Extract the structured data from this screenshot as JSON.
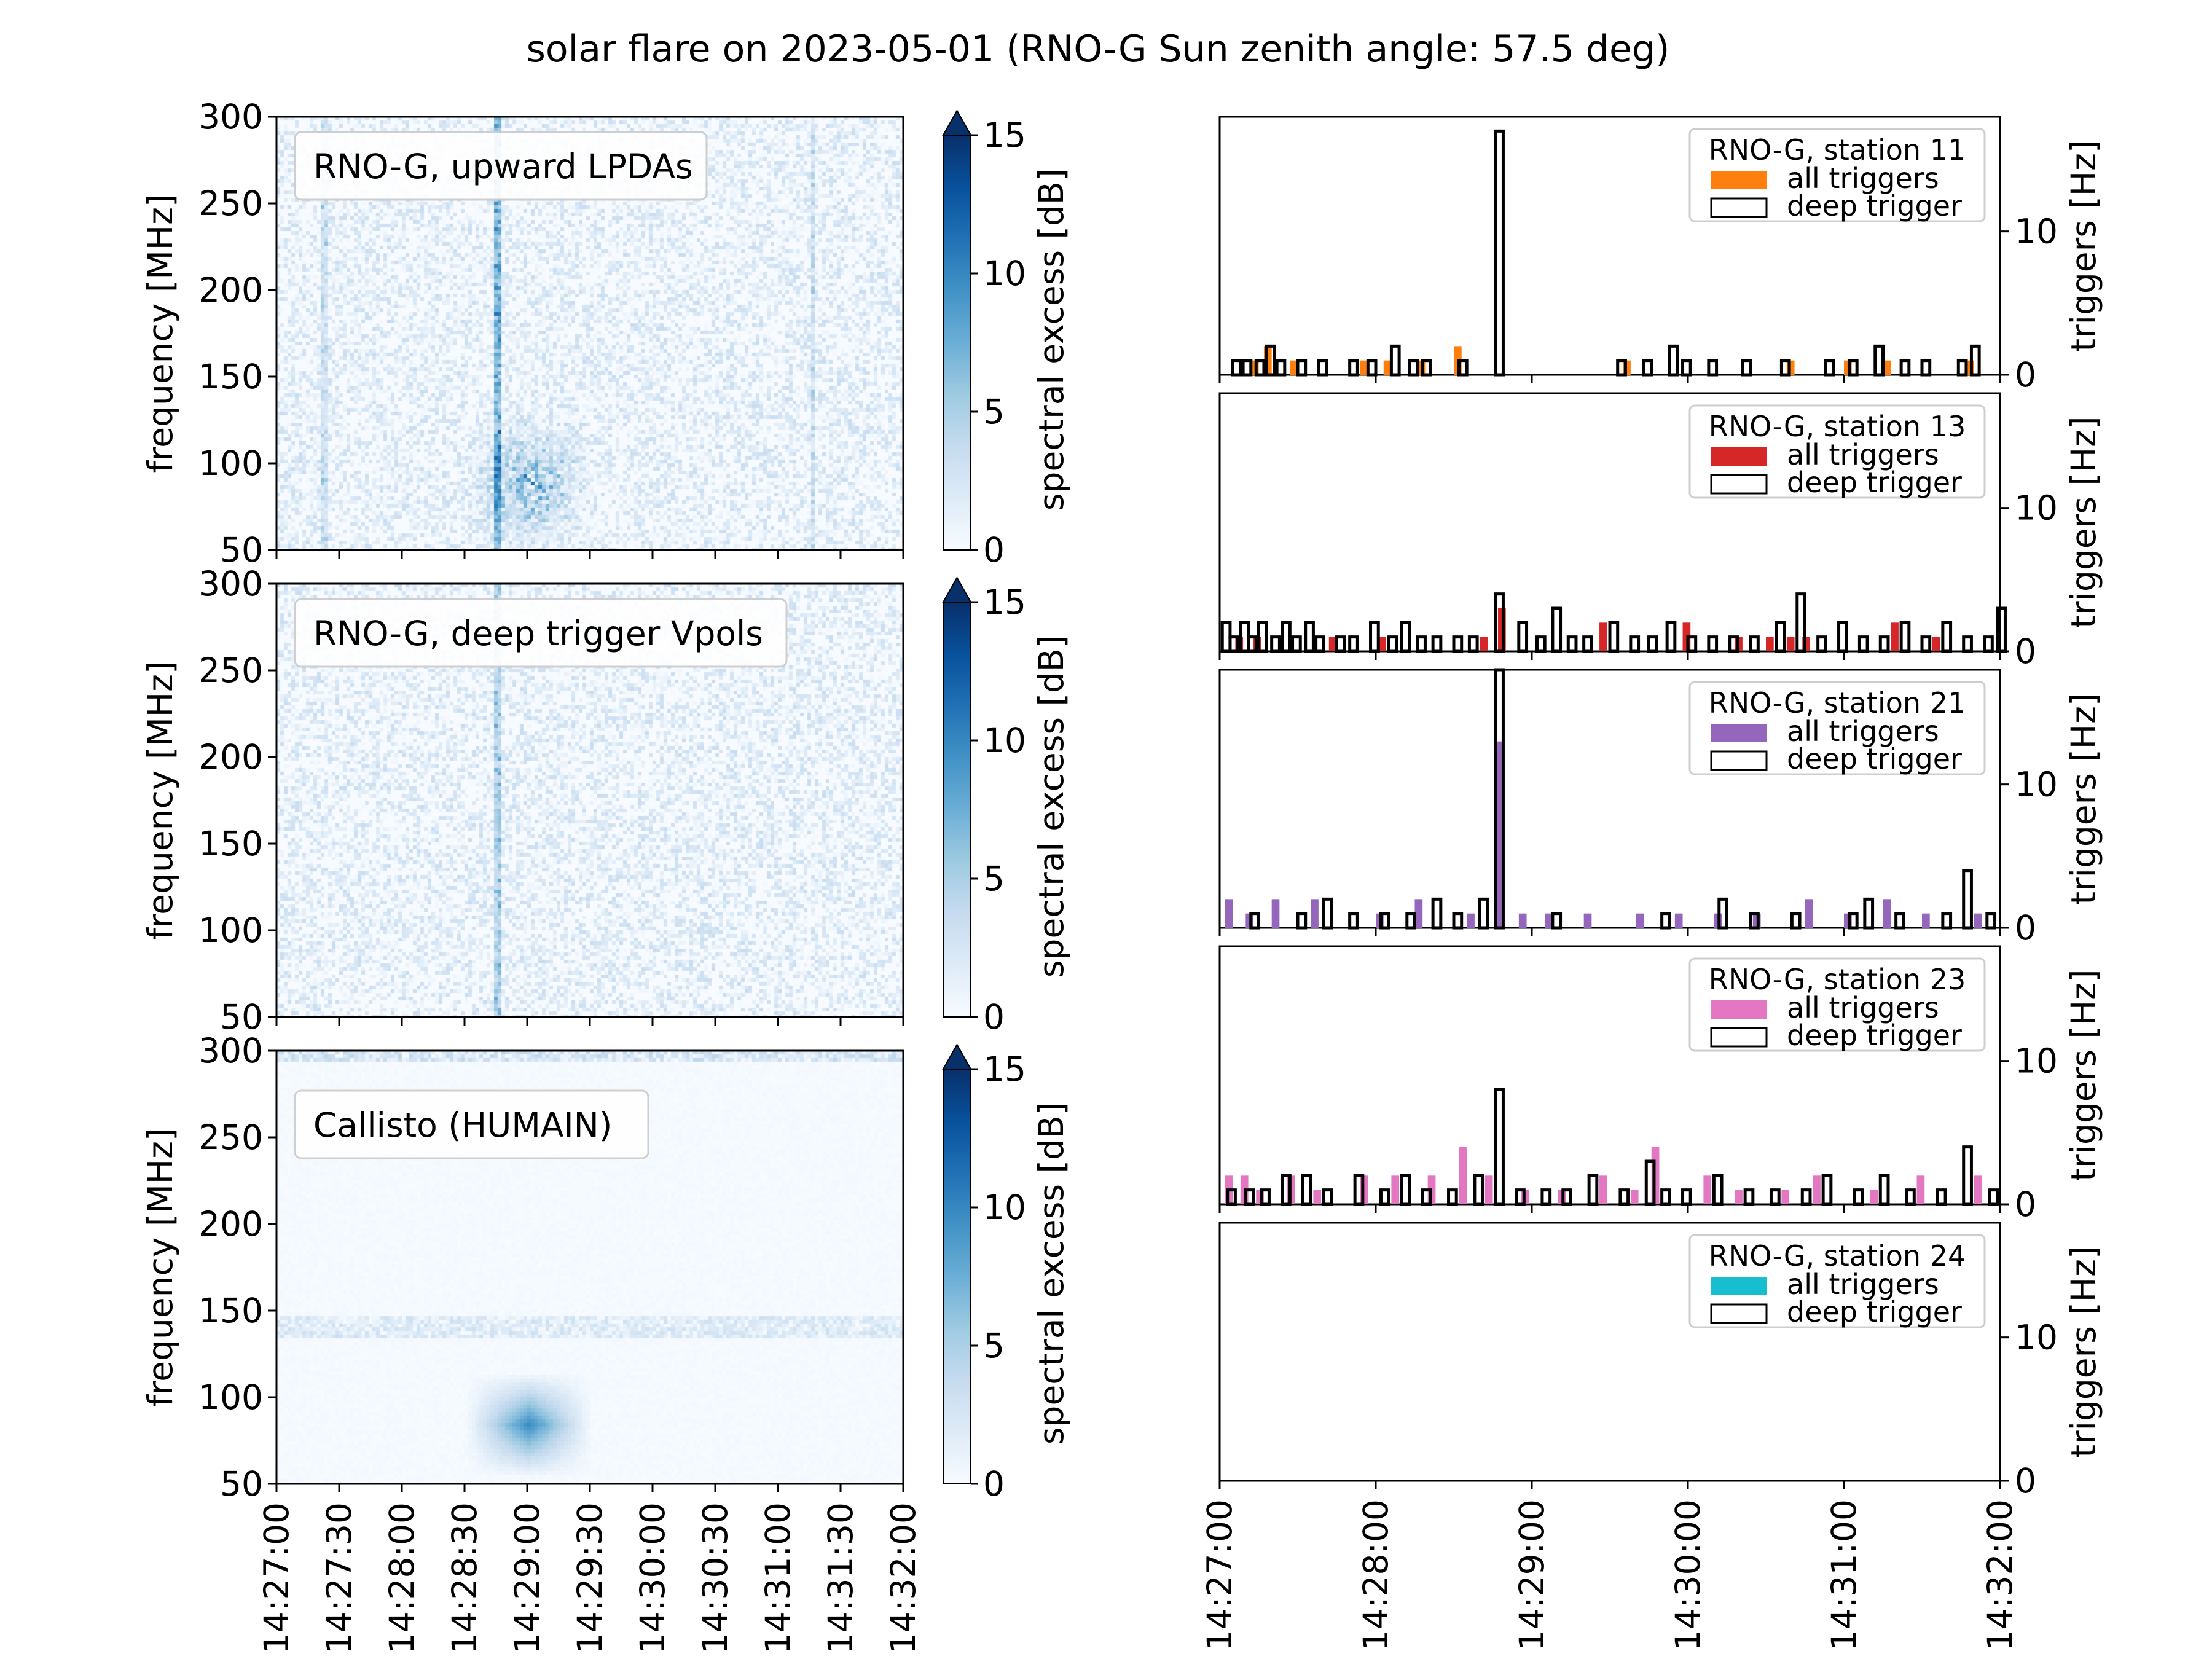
{
  "figure": {
    "title": "solar flare on 2023-05-01 (RNO-G Sun zenith angle: 57.5 deg)"
  },
  "colors": {
    "spectrogram_cmap": "Blues",
    "station_11": "#ff7f0e",
    "station_13": "#d62728",
    "station_21": "#9467bd",
    "station_23": "#e377c2",
    "station_24": "#17becf",
    "deep_trigger": "#000000"
  },
  "chart_data": [
    {
      "type": "heatmap",
      "panel_label": "RNO-G, upward LPDAs",
      "ylabel": "frequency [MHz]",
      "yticks": [
        "50",
        "100",
        "150",
        "200",
        "250",
        "300"
      ],
      "ylim": [
        50,
        300
      ],
      "xlim": [
        "14:27:00",
        "14:32:00"
      ],
      "colorbar": {
        "label": "spectral excess [dB]",
        "ticks": [
          "0",
          "5",
          "10",
          "15"
        ],
        "range": [
          0,
          15
        ],
        "extend": "max"
      },
      "features": [
        {
          "kind": "burst",
          "t_start": "14:28:30",
          "t_end": "14:29:30",
          "f_low": 50,
          "f_high": 130,
          "level_db": 6
        },
        {
          "kind": "vertical_line",
          "t": "14:28:45",
          "level_db": 8
        },
        {
          "kind": "vertical_line",
          "t": "14:27:22",
          "level_db": 3
        },
        {
          "kind": "vertical_line",
          "t": "14:31:16",
          "level_db": 3
        }
      ]
    },
    {
      "type": "heatmap",
      "panel_label": "RNO-G, deep trigger Vpols",
      "ylabel": "frequency [MHz]",
      "yticks": [
        "50",
        "100",
        "150",
        "200",
        "250",
        "300"
      ],
      "ylim": [
        50,
        300
      ],
      "xlim": [
        "14:27:00",
        "14:32:00"
      ],
      "colorbar": {
        "label": "spectral excess [dB]",
        "ticks": [
          "0",
          "5",
          "10",
          "15"
        ],
        "range": [
          0,
          15
        ],
        "extend": "max"
      },
      "features": [
        {
          "kind": "vertical_line",
          "t": "14:28:45",
          "level_db": 5
        }
      ]
    },
    {
      "type": "heatmap",
      "panel_label": "Callisto (HUMAIN)",
      "ylabel": "frequency [MHz]",
      "yticks": [
        "50",
        "100",
        "150",
        "200",
        "250",
        "300"
      ],
      "ylim": [
        50,
        300
      ],
      "xlim": [
        "14:27:00",
        "14:32:00"
      ],
      "xticks": [
        "14:27:00",
        "14:27:30",
        "14:28:00",
        "14:28:30",
        "14:29:00",
        "14:29:30",
        "14:30:00",
        "14:30:30",
        "14:31:00",
        "14:31:30",
        "14:32:00"
      ],
      "colorbar": {
        "label": "spectral excess [dB]",
        "ticks": [
          "0",
          "5",
          "10",
          "15"
        ],
        "range": [
          0,
          15
        ],
        "extend": "max"
      },
      "features": [
        {
          "kind": "burst",
          "t_start": "14:28:30",
          "t_end": "14:29:30",
          "f_low": 55,
          "f_high": 115,
          "level_db": 8
        },
        {
          "kind": "band",
          "f_low": 135,
          "f_high": 148,
          "level_db": 3
        },
        {
          "kind": "band",
          "f_low": 295,
          "f_high": 300,
          "level_db": 4
        }
      ]
    },
    {
      "type": "bar",
      "legend_title": "RNO-G, station 11",
      "legend_items": [
        "all triggers",
        "deep trigger"
      ],
      "color_key": "station_11",
      "ylabel": "triggers [Hz]",
      "yticks": [
        "0",
        "10"
      ],
      "ylim": [
        0,
        18
      ],
      "xlim": [
        "14:27:00",
        "14:32:00"
      ],
      "bin_seconds": 3,
      "deep_trigger": [
        {
          "t": "14:27:05",
          "v": 1
        },
        {
          "t": "14:27:09",
          "v": 1
        },
        {
          "t": "14:27:14",
          "v": 1
        },
        {
          "t": "14:27:18",
          "v": 2
        },
        {
          "t": "14:27:22",
          "v": 1
        },
        {
          "t": "14:27:30",
          "v": 1
        },
        {
          "t": "14:27:38",
          "v": 1
        },
        {
          "t": "14:27:50",
          "v": 1
        },
        {
          "t": "14:27:57",
          "v": 1
        },
        {
          "t": "14:28:06",
          "v": 2
        },
        {
          "t": "14:28:13",
          "v": 1
        },
        {
          "t": "14:28:18",
          "v": 1
        },
        {
          "t": "14:28:32",
          "v": 1
        },
        {
          "t": "14:28:46",
          "v": 17
        },
        {
          "t": "14:29:33",
          "v": 1
        },
        {
          "t": "14:29:43",
          "v": 1
        },
        {
          "t": "14:29:53",
          "v": 2
        },
        {
          "t": "14:29:58",
          "v": 1
        },
        {
          "t": "14:30:08",
          "v": 1
        },
        {
          "t": "14:30:21",
          "v": 1
        },
        {
          "t": "14:30:36",
          "v": 1
        },
        {
          "t": "14:30:53",
          "v": 1
        },
        {
          "t": "14:31:02",
          "v": 1
        },
        {
          "t": "14:31:12",
          "v": 2
        },
        {
          "t": "14:31:22",
          "v": 1
        },
        {
          "t": "14:31:30",
          "v": 1
        },
        {
          "t": "14:31:44",
          "v": 1
        },
        {
          "t": "14:31:49",
          "v": 2
        }
      ],
      "all_triggers": [
        {
          "t": "14:27:12",
          "v": 1
        },
        {
          "t": "14:27:17",
          "v": 2
        },
        {
          "t": "14:27:27",
          "v": 1
        },
        {
          "t": "14:27:54",
          "v": 1
        },
        {
          "t": "14:28:03",
          "v": 1
        },
        {
          "t": "14:28:16",
          "v": 1
        },
        {
          "t": "14:28:30",
          "v": 2
        },
        {
          "t": "14:29:35",
          "v": 1
        },
        {
          "t": "14:30:38",
          "v": 1
        },
        {
          "t": "14:31:00",
          "v": 1
        },
        {
          "t": "14:31:15",
          "v": 1
        },
        {
          "t": "14:31:47",
          "v": 1
        }
      ]
    },
    {
      "type": "bar",
      "legend_title": "RNO-G, station 13",
      "legend_items": [
        "all triggers",
        "deep trigger"
      ],
      "color_key": "station_13",
      "ylabel": "triggers [Hz]",
      "yticks": [
        "0",
        "10"
      ],
      "ylim": [
        0,
        18
      ],
      "xlim": [
        "14:27:00",
        "14:32:00"
      ],
      "bin_seconds": 3,
      "deep_trigger": [
        {
          "t": "14:27:01",
          "v": 2
        },
        {
          "t": "14:27:04",
          "v": 1
        },
        {
          "t": "14:27:08",
          "v": 2
        },
        {
          "t": "14:27:11",
          "v": 1
        },
        {
          "t": "14:27:15",
          "v": 2
        },
        {
          "t": "14:27:20",
          "v": 1
        },
        {
          "t": "14:27:24",
          "v": 2
        },
        {
          "t": "14:27:28",
          "v": 1
        },
        {
          "t": "14:27:33",
          "v": 2
        },
        {
          "t": "14:27:37",
          "v": 1
        },
        {
          "t": "14:27:45",
          "v": 1
        },
        {
          "t": "14:27:50",
          "v": 1
        },
        {
          "t": "14:27:58",
          "v": 2
        },
        {
          "t": "14:28:05",
          "v": 1
        },
        {
          "t": "14:28:10",
          "v": 2
        },
        {
          "t": "14:28:16",
          "v": 1
        },
        {
          "t": "14:28:22",
          "v": 1
        },
        {
          "t": "14:28:30",
          "v": 1
        },
        {
          "t": "14:28:36",
          "v": 1
        },
        {
          "t": "14:28:46",
          "v": 4
        },
        {
          "t": "14:28:55",
          "v": 2
        },
        {
          "t": "14:29:02",
          "v": 1
        },
        {
          "t": "14:29:08",
          "v": 3
        },
        {
          "t": "14:29:14",
          "v": 1
        },
        {
          "t": "14:29:20",
          "v": 1
        },
        {
          "t": "14:29:30",
          "v": 2
        },
        {
          "t": "14:29:38",
          "v": 1
        },
        {
          "t": "14:29:45",
          "v": 1
        },
        {
          "t": "14:29:52",
          "v": 2
        },
        {
          "t": "14:30:00",
          "v": 1
        },
        {
          "t": "14:30:08",
          "v": 1
        },
        {
          "t": "14:30:16",
          "v": 1
        },
        {
          "t": "14:30:24",
          "v": 1
        },
        {
          "t": "14:30:34",
          "v": 2
        },
        {
          "t": "14:30:42",
          "v": 4
        },
        {
          "t": "14:30:50",
          "v": 1
        },
        {
          "t": "14:30:58",
          "v": 2
        },
        {
          "t": "14:31:06",
          "v": 1
        },
        {
          "t": "14:31:14",
          "v": 1
        },
        {
          "t": "14:31:22",
          "v": 2
        },
        {
          "t": "14:31:30",
          "v": 1
        },
        {
          "t": "14:31:38",
          "v": 2
        },
        {
          "t": "14:31:46",
          "v": 1
        },
        {
          "t": "14:31:54",
          "v": 1
        },
        {
          "t": "14:31:59",
          "v": 3
        }
      ],
      "all_triggers": [
        {
          "t": "14:27:06",
          "v": 1
        },
        {
          "t": "14:27:13",
          "v": 1
        },
        {
          "t": "14:27:42",
          "v": 1
        },
        {
          "t": "14:28:01",
          "v": 1
        },
        {
          "t": "14:28:40",
          "v": 1
        },
        {
          "t": "14:28:47",
          "v": 3
        },
        {
          "t": "14:29:26",
          "v": 2
        },
        {
          "t": "14:29:58",
          "v": 2
        },
        {
          "t": "14:30:18",
          "v": 1
        },
        {
          "t": "14:30:30",
          "v": 1
        },
        {
          "t": "14:30:38",
          "v": 1
        },
        {
          "t": "14:30:44",
          "v": 1
        },
        {
          "t": "14:31:18",
          "v": 2
        },
        {
          "t": "14:31:34",
          "v": 1
        }
      ]
    },
    {
      "type": "bar",
      "legend_title": "RNO-G, station 21",
      "legend_items": [
        "all triggers",
        "deep trigger"
      ],
      "color_key": "station_21",
      "ylabel": "triggers [Hz]",
      "yticks": [
        "0",
        "10"
      ],
      "ylim": [
        0,
        18
      ],
      "xlim": [
        "14:27:00",
        "14:32:00"
      ],
      "bin_seconds": 3,
      "deep_trigger": [
        {
          "t": "14:27:12",
          "v": 1
        },
        {
          "t": "14:27:30",
          "v": 1
        },
        {
          "t": "14:27:40",
          "v": 2
        },
        {
          "t": "14:27:50",
          "v": 1
        },
        {
          "t": "14:28:02",
          "v": 1
        },
        {
          "t": "14:28:12",
          "v": 1
        },
        {
          "t": "14:28:22",
          "v": 2
        },
        {
          "t": "14:28:30",
          "v": 1
        },
        {
          "t": "14:28:40",
          "v": 2
        },
        {
          "t": "14:28:46",
          "v": 18
        },
        {
          "t": "14:29:08",
          "v": 1
        },
        {
          "t": "14:29:50",
          "v": 1
        },
        {
          "t": "14:30:12",
          "v": 2
        },
        {
          "t": "14:30:24",
          "v": 1
        },
        {
          "t": "14:30:40",
          "v": 1
        },
        {
          "t": "14:31:02",
          "v": 1
        },
        {
          "t": "14:31:08",
          "v": 2
        },
        {
          "t": "14:31:20",
          "v": 1
        },
        {
          "t": "14:31:38",
          "v": 1
        },
        {
          "t": "14:31:46",
          "v": 4
        },
        {
          "t": "14:31:55",
          "v": 1
        }
      ],
      "all_triggers": [
        {
          "t": "14:27:02",
          "v": 2
        },
        {
          "t": "14:27:10",
          "v": 1
        },
        {
          "t": "14:27:20",
          "v": 2
        },
        {
          "t": "14:27:35",
          "v": 2
        },
        {
          "t": "14:28:00",
          "v": 1
        },
        {
          "t": "14:28:15",
          "v": 2
        },
        {
          "t": "14:28:35",
          "v": 1
        },
        {
          "t": "14:28:46",
          "v": 13
        },
        {
          "t": "14:28:55",
          "v": 1
        },
        {
          "t": "14:29:05",
          "v": 1
        },
        {
          "t": "14:29:20",
          "v": 1
        },
        {
          "t": "14:29:40",
          "v": 1
        },
        {
          "t": "14:29:55",
          "v": 1
        },
        {
          "t": "14:30:10",
          "v": 1
        },
        {
          "t": "14:30:25",
          "v": 1
        },
        {
          "t": "14:30:45",
          "v": 2
        },
        {
          "t": "14:31:00",
          "v": 1
        },
        {
          "t": "14:31:15",
          "v": 2
        },
        {
          "t": "14:31:30",
          "v": 1
        },
        {
          "t": "14:31:50",
          "v": 1
        }
      ]
    },
    {
      "type": "bar",
      "legend_title": "RNO-G, station 23",
      "legend_items": [
        "all triggers",
        "deep trigger"
      ],
      "color_key": "station_23",
      "ylabel": "triggers [Hz]",
      "yticks": [
        "0",
        "10"
      ],
      "ylim": [
        0,
        18
      ],
      "xlim": [
        "14:27:00",
        "14:32:00"
      ],
      "bin_seconds": 3,
      "deep_trigger": [
        {
          "t": "14:27:03",
          "v": 1
        },
        {
          "t": "14:27:10",
          "v": 1
        },
        {
          "t": "14:27:16",
          "v": 1
        },
        {
          "t": "14:27:24",
          "v": 2
        },
        {
          "t": "14:27:32",
          "v": 2
        },
        {
          "t": "14:27:40",
          "v": 1
        },
        {
          "t": "14:27:52",
          "v": 2
        },
        {
          "t": "14:28:02",
          "v": 1
        },
        {
          "t": "14:28:10",
          "v": 2
        },
        {
          "t": "14:28:18",
          "v": 1
        },
        {
          "t": "14:28:28",
          "v": 1
        },
        {
          "t": "14:28:38",
          "v": 2
        },
        {
          "t": "14:28:46",
          "v": 8
        },
        {
          "t": "14:28:54",
          "v": 1
        },
        {
          "t": "14:29:04",
          "v": 1
        },
        {
          "t": "14:29:12",
          "v": 1
        },
        {
          "t": "14:29:22",
          "v": 2
        },
        {
          "t": "14:29:34",
          "v": 1
        },
        {
          "t": "14:29:44",
          "v": 3
        },
        {
          "t": "14:29:50",
          "v": 1
        },
        {
          "t": "14:29:58",
          "v": 1
        },
        {
          "t": "14:30:10",
          "v": 2
        },
        {
          "t": "14:30:22",
          "v": 1
        },
        {
          "t": "14:30:32",
          "v": 1
        },
        {
          "t": "14:30:44",
          "v": 1
        },
        {
          "t": "14:30:52",
          "v": 2
        },
        {
          "t": "14:31:04",
          "v": 1
        },
        {
          "t": "14:31:14",
          "v": 2
        },
        {
          "t": "14:31:24",
          "v": 1
        },
        {
          "t": "14:31:36",
          "v": 1
        },
        {
          "t": "14:31:46",
          "v": 4
        },
        {
          "t": "14:31:56",
          "v": 1
        }
      ],
      "all_triggers": [
        {
          "t": "14:27:02",
          "v": 2
        },
        {
          "t": "14:27:08",
          "v": 2
        },
        {
          "t": "14:27:14",
          "v": 1
        },
        {
          "t": "14:27:26",
          "v": 2
        },
        {
          "t": "14:27:36",
          "v": 1
        },
        {
          "t": "14:27:54",
          "v": 2
        },
        {
          "t": "14:28:06",
          "v": 2
        },
        {
          "t": "14:28:20",
          "v": 2
        },
        {
          "t": "14:28:32",
          "v": 4
        },
        {
          "t": "14:28:42",
          "v": 2
        },
        {
          "t": "14:28:56",
          "v": 1
        },
        {
          "t": "14:29:10",
          "v": 1
        },
        {
          "t": "14:29:26",
          "v": 2
        },
        {
          "t": "14:29:38",
          "v": 1
        },
        {
          "t": "14:29:46",
          "v": 4
        },
        {
          "t": "14:30:06",
          "v": 2
        },
        {
          "t": "14:30:18",
          "v": 1
        },
        {
          "t": "14:30:36",
          "v": 1
        },
        {
          "t": "14:30:48",
          "v": 2
        },
        {
          "t": "14:31:10",
          "v": 1
        },
        {
          "t": "14:31:28",
          "v": 2
        },
        {
          "t": "14:31:50",
          "v": 2
        }
      ]
    },
    {
      "type": "bar",
      "legend_title": "RNO-G, station 24",
      "legend_items": [
        "all triggers",
        "deep trigger"
      ],
      "color_key": "station_24",
      "ylabel": "triggers [Hz]",
      "yticks": [
        "0",
        "10"
      ],
      "ylim": [
        0,
        18
      ],
      "xlim": [
        "14:27:00",
        "14:32:00"
      ],
      "xticks": [
        "14:27:00",
        "14:28:00",
        "14:29:00",
        "14:30:00",
        "14:31:00",
        "14:32:00"
      ],
      "bin_seconds": 3,
      "deep_trigger": [],
      "all_triggers": []
    }
  ]
}
